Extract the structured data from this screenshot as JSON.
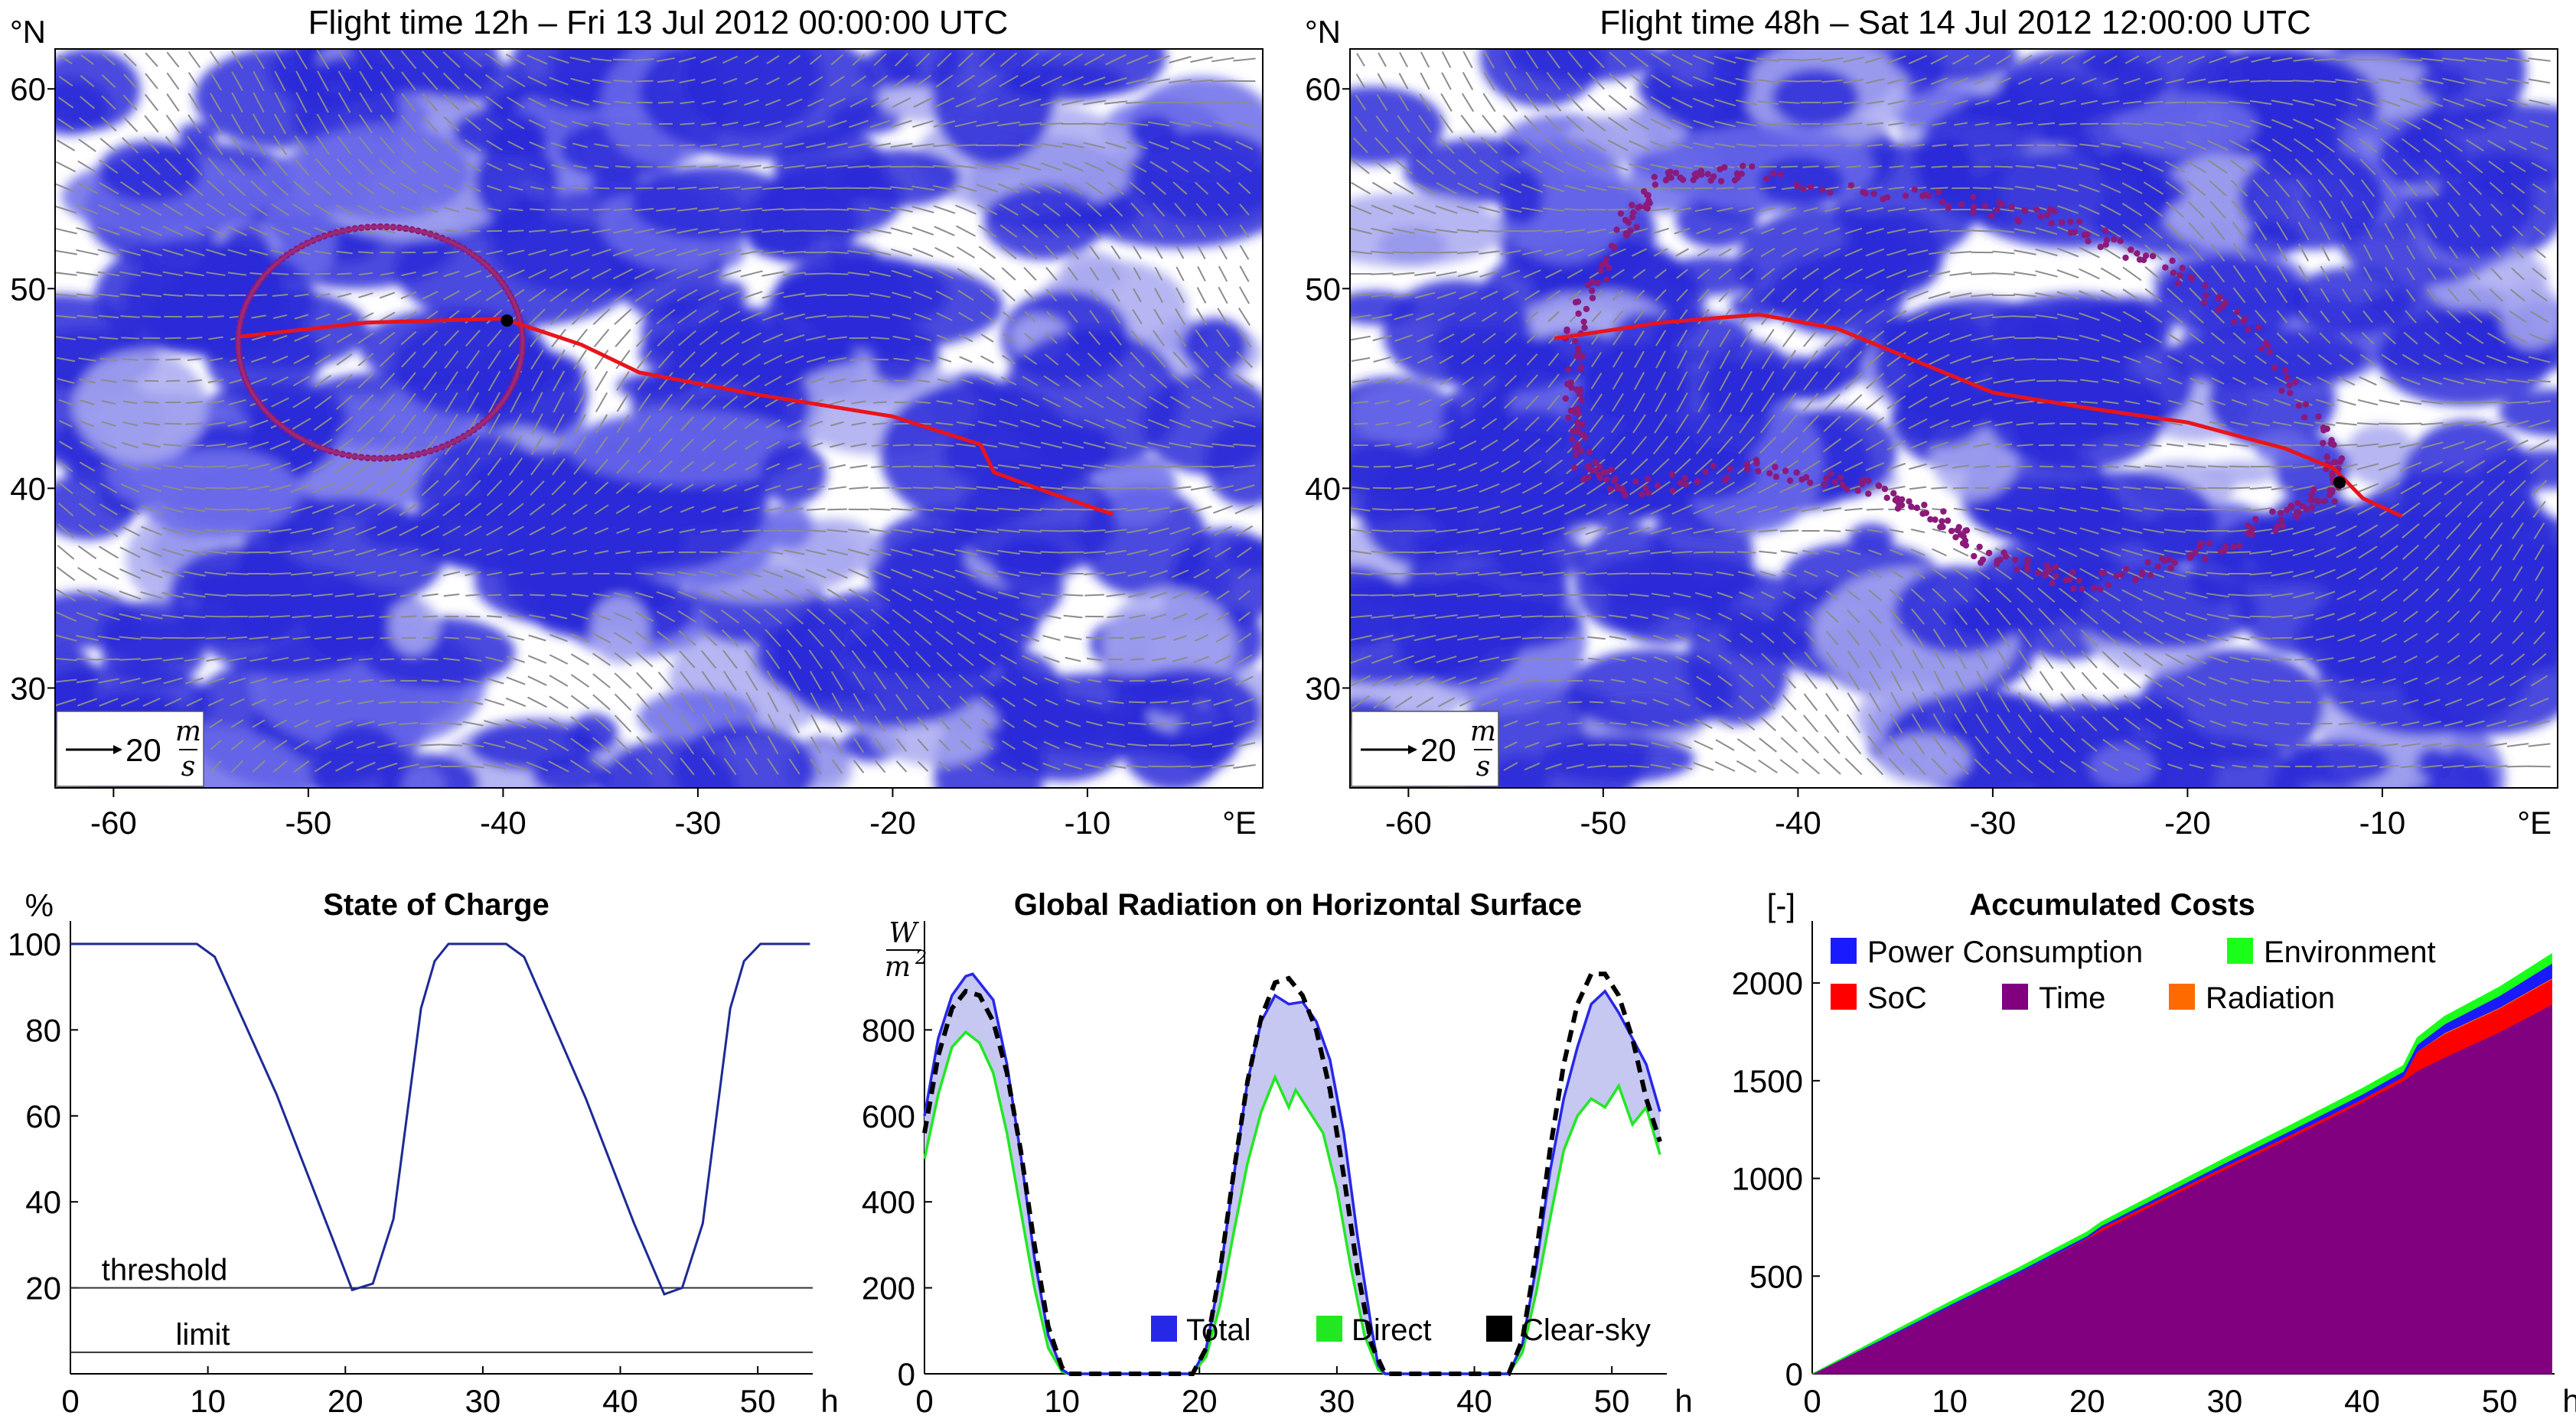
{
  "chart_data": [
    {
      "type": "map",
      "title": "Flight time 12h – Fri 13 Jul 2012 00:00:00 UTC",
      "lon_range": [
        -63,
        -1
      ],
      "lat_range": [
        25,
        62
      ],
      "x_ticks": [
        -60,
        -50,
        -40,
        -30,
        -20,
        -10
      ],
      "y_ticks": [
        30,
        40,
        50,
        60
      ],
      "x_unit": "°E",
      "y_unit": "°N",
      "wind_scale": {
        "value": "20",
        "unit_num": "m",
        "unit_den": "s"
      },
      "route": [
        [
          -53.5,
          47.6
        ],
        [
          -47,
          48.3
        ],
        [
          -40,
          48.5
        ],
        [
          -36,
          47.2
        ],
        [
          -33,
          45.8
        ],
        [
          -27,
          44.7
        ],
        [
          -20,
          43.6
        ],
        [
          -15.5,
          42.2
        ],
        [
          -14.8,
          40.8
        ],
        [
          -12,
          39.8
        ],
        [
          -8.7,
          38.7
        ]
      ],
      "aircraft_position": [
        -39.8,
        48.4
      ],
      "reachable_set": {
        "shape": "ring",
        "center": [
          -46.3,
          47.3
        ],
        "radius_lon": 7.3,
        "radius_lat": 5.8
      }
    },
    {
      "type": "map",
      "title": "Flight time 48h – Sat 14 Jul 2012 12:00:00 UTC",
      "lon_range": [
        -63,
        -1
      ],
      "lat_range": [
        25,
        62
      ],
      "x_ticks": [
        -60,
        -50,
        -40,
        -30,
        -20,
        -10
      ],
      "y_ticks": [
        30,
        40,
        50,
        60
      ],
      "x_unit": "°E",
      "y_unit": "°N",
      "wind_scale": {
        "value": "20",
        "unit_num": "m",
        "unit_den": "s"
      },
      "route": [
        [
          -52.5,
          47.5
        ],
        [
          -47,
          48.3
        ],
        [
          -42,
          48.7
        ],
        [
          -38,
          48.0
        ],
        [
          -33,
          46.0
        ],
        [
          -30,
          44.8
        ],
        [
          -25,
          44.0
        ],
        [
          -20,
          43.3
        ],
        [
          -15,
          42.0
        ],
        [
          -12.5,
          41.0
        ],
        [
          -11,
          39.5
        ],
        [
          -9,
          38.6
        ]
      ],
      "aircraft_position": [
        -12.2,
        40.3
      ],
      "reachable_set": {
        "shape": "scattered",
        "outline": [
          [
            -51.5,
            48
          ],
          [
            -49,
            53
          ],
          [
            -47,
            55.5
          ],
          [
            -43,
            55.8
          ],
          [
            -33,
            54.5
          ],
          [
            -27,
            53.5
          ],
          [
            -22,
            51.5
          ],
          [
            -17,
            48.5
          ],
          [
            -12.5,
            42
          ],
          [
            -12.5,
            40
          ],
          [
            -15,
            38.5
          ],
          [
            -20,
            36.5
          ],
          [
            -25,
            35.2
          ],
          [
            -30,
            36.5
          ],
          [
            -33,
            38.5
          ],
          [
            -36,
            40
          ],
          [
            -42,
            41
          ],
          [
            -49,
            40
          ],
          [
            -51,
            41
          ],
          [
            -51.5,
            44
          ],
          [
            -51.5,
            48
          ]
        ]
      }
    },
    {
      "type": "line",
      "title": "State of Charge",
      "xlabel": "h",
      "ylabel": "%",
      "xlim": [
        0,
        54
      ],
      "ylim": [
        0,
        100
      ],
      "x_ticks": [
        0,
        10,
        20,
        30,
        40,
        50
      ],
      "y_ticks": [
        20,
        40,
        60,
        80,
        100
      ],
      "series": [
        {
          "values": [
            [
              0,
              100
            ],
            [
              9.2,
              100
            ],
            [
              10.5,
              97
            ],
            [
              15,
              65
            ],
            [
              19,
              32
            ],
            [
              20.5,
              19.5
            ],
            [
              22,
              21
            ],
            [
              23.5,
              36
            ],
            [
              25.5,
              85
            ],
            [
              26.5,
              96
            ],
            [
              27.5,
              100
            ],
            [
              31.7,
              100
            ],
            [
              33,
              97
            ],
            [
              37.5,
              64
            ],
            [
              41,
              35
            ],
            [
              43.2,
              18.5
            ],
            [
              44.5,
              20
            ],
            [
              46,
              35
            ],
            [
              48,
              85
            ],
            [
              49,
              96
            ],
            [
              50.2,
              100
            ],
            [
              53.8,
              100
            ]
          ]
        }
      ],
      "reference_lines": [
        {
          "label": "threshold",
          "y": 20
        },
        {
          "label": "limit",
          "y": 5
        }
      ]
    },
    {
      "type": "area",
      "title": "Global Radiation on Horizontal Surface",
      "ylabel_num": "W",
      "ylabel_den": "m2",
      "xlabel": "h",
      "xlim": [
        0,
        54
      ],
      "ylim": [
        0,
        1000
      ],
      "x_ticks": [
        0,
        10,
        20,
        30,
        40,
        50
      ],
      "y_ticks": [
        0,
        200,
        400,
        600,
        800
      ],
      "legend": [
        "Total",
        "Direct",
        "Clear-sky"
      ],
      "legend_position": "bottom-right",
      "series": [
        {
          "name": "Total",
          "color": "#2727e8",
          "values": [
            [
              0,
              600
            ],
            [
              1,
              780
            ],
            [
              2,
              880
            ],
            [
              3,
              925
            ],
            [
              3.5,
              930
            ],
            [
              5,
              870
            ],
            [
              6,
              720
            ],
            [
              7,
              510
            ],
            [
              8,
              270
            ],
            [
              9,
              90
            ],
            [
              10,
              10
            ],
            [
              10.5,
              0
            ],
            [
              19.5,
              0
            ],
            [
              20.5,
              60
            ],
            [
              21.5,
              230
            ],
            [
              22.5,
              460
            ],
            [
              23.5,
              680
            ],
            [
              24.5,
              820
            ],
            [
              25.5,
              880
            ],
            [
              26.5,
              860
            ],
            [
              27.5,
              865
            ],
            [
              28.5,
              820
            ],
            [
              29.5,
              730
            ],
            [
              30.5,
              560
            ],
            [
              31.5,
              320
            ],
            [
              32.5,
              110
            ],
            [
              33,
              20
            ],
            [
              33.5,
              0
            ],
            [
              42.5,
              0
            ],
            [
              43.5,
              70
            ],
            [
              44.5,
              250
            ],
            [
              45.5,
              470
            ],
            [
              46.5,
              640
            ],
            [
              47.5,
              760
            ],
            [
              48.5,
              860
            ],
            [
              49.5,
              890
            ],
            [
              50.5,
              840
            ],
            [
              51.5,
              780
            ],
            [
              52.5,
              720
            ],
            [
              53.5,
              610
            ]
          ]
        },
        {
          "name": "Direct",
          "color": "#22e822",
          "values": [
            [
              0,
              500
            ],
            [
              1,
              650
            ],
            [
              2,
              760
            ],
            [
              3,
              795
            ],
            [
              4,
              770
            ],
            [
              5,
              700
            ],
            [
              6,
              560
            ],
            [
              7,
              380
            ],
            [
              8,
              200
            ],
            [
              9,
              60
            ],
            [
              10,
              5
            ],
            [
              10.5,
              0
            ],
            [
              19.5,
              0
            ],
            [
              20.5,
              40
            ],
            [
              21.5,
              160
            ],
            [
              22.5,
              330
            ],
            [
              23.5,
              490
            ],
            [
              24.5,
              610
            ],
            [
              25.5,
              690
            ],
            [
              26.5,
              620
            ],
            [
              27,
              660
            ],
            [
              28,
              610
            ],
            [
              29,
              560
            ],
            [
              30,
              430
            ],
            [
              31,
              250
            ],
            [
              32,
              90
            ],
            [
              33,
              10
            ],
            [
              33.5,
              0
            ],
            [
              42.5,
              0
            ],
            [
              43.5,
              50
            ],
            [
              44.5,
              190
            ],
            [
              45.5,
              360
            ],
            [
              46.5,
              520
            ],
            [
              47.5,
              600
            ],
            [
              48.5,
              640
            ],
            [
              49.5,
              620
            ],
            [
              50.5,
              670
            ],
            [
              51.5,
              580
            ],
            [
              52.5,
              620
            ],
            [
              53.5,
              510
            ]
          ]
        },
        {
          "name": "Clear-sky",
          "color": "#000000",
          "values": [
            [
              0,
              560
            ],
            [
              1,
              740
            ],
            [
              2,
              850
            ],
            [
              3,
              890
            ],
            [
              4,
              880
            ],
            [
              5,
              820
            ],
            [
              6,
              700
            ],
            [
              7,
              520
            ],
            [
              8,
              300
            ],
            [
              9,
              110
            ],
            [
              10,
              15
            ],
            [
              10.5,
              0
            ],
            [
              19.5,
              0
            ],
            [
              20.5,
              60
            ],
            [
              21.5,
              240
            ],
            [
              22.5,
              470
            ],
            [
              23.5,
              680
            ],
            [
              24.5,
              830
            ],
            [
              25.5,
              910
            ],
            [
              26.5,
              920
            ],
            [
              27.5,
              880
            ],
            [
              28.5,
              800
            ],
            [
              29.5,
              660
            ],
            [
              30.5,
              460
            ],
            [
              31.5,
              240
            ],
            [
              32.5,
              70
            ],
            [
              33.5,
              0
            ],
            [
              42.5,
              0
            ],
            [
              43.5,
              80
            ],
            [
              44.5,
              280
            ],
            [
              45.5,
              520
            ],
            [
              46.5,
              720
            ],
            [
              47.5,
              860
            ],
            [
              48.5,
              930
            ],
            [
              49.5,
              930
            ],
            [
              50.5,
              880
            ],
            [
              51.5,
              780
            ],
            [
              52.5,
              640
            ],
            [
              53.5,
              540
            ]
          ]
        }
      ]
    },
    {
      "type": "area",
      "title": "Accumulated Costs",
      "ylabel": "[-]",
      "xlabel": "h",
      "xlim": [
        0,
        54
      ],
      "ylim": [
        0,
        2200
      ],
      "x_ticks": [
        0,
        10,
        20,
        30,
        40,
        50
      ],
      "y_ticks": [
        0,
        500,
        1000,
        1500,
        2000
      ],
      "stacked": true,
      "legend": [
        "Power Consumption",
        "Environment",
        "SoC",
        "Time",
        "Radiation"
      ],
      "legend_position": "top-left",
      "x": [
        0,
        5,
        10,
        15,
        20,
        21,
        25,
        30,
        35,
        40,
        43,
        44,
        46,
        50,
        53.8
      ],
      "series": [
        {
          "name": "Time",
          "color": "#800080",
          "values": [
            0,
            170,
            345,
            515,
            690,
            730,
            870,
            1045,
            1215,
            1390,
            1500,
            1550,
            1620,
            1750,
            1890
          ]
        },
        {
          "name": "SoC",
          "color": "#ff0000",
          "values": [
            0,
            0,
            0,
            0,
            5,
            15,
            15,
            15,
            15,
            15,
            20,
            100,
            120,
            120,
            130
          ]
        },
        {
          "name": "Radiation",
          "color": "#ff6a00",
          "values": [
            0,
            0,
            0,
            0,
            0,
            0,
            0,
            0,
            0,
            0,
            0,
            0,
            5,
            5,
            5
          ]
        },
        {
          "name": "Power Consumption",
          "color": "#1a1aff",
          "values": [
            0,
            5,
            8,
            10,
            12,
            12,
            15,
            18,
            22,
            25,
            28,
            35,
            45,
            60,
            75
          ]
        },
        {
          "name": "Environment",
          "color": "#1aff1a",
          "values": [
            0,
            10,
            15,
            18,
            20,
            20,
            22,
            25,
            28,
            30,
            30,
            35,
            40,
            45,
            50
          ]
        }
      ]
    }
  ]
}
